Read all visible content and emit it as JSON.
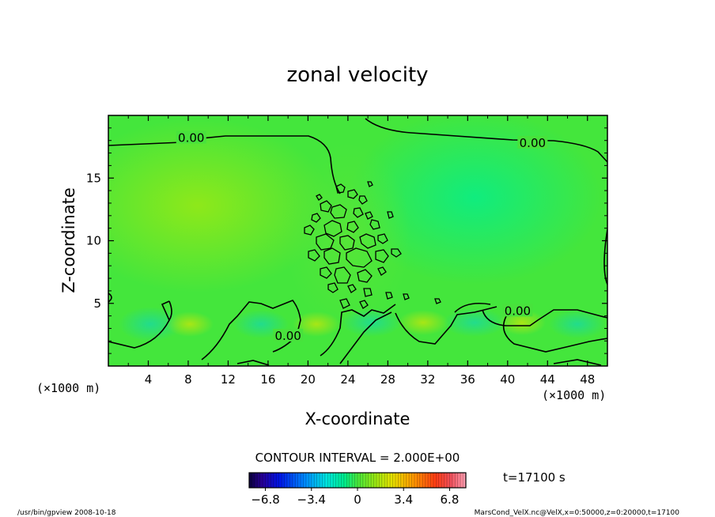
{
  "chart_data": {
    "type": "heatmap",
    "title": "zonal velocity",
    "xlabel": "X-coordinate",
    "ylabel": "Z-coordinate",
    "x_units": "(×1000 m)",
    "z_units": "(×1000 m)",
    "xlim": [
      0,
      50
    ],
    "ylim": [
      0,
      20
    ],
    "x_ticks": [
      4,
      8,
      12,
      16,
      20,
      24,
      28,
      32,
      36,
      40,
      44,
      48
    ],
    "y_ticks": [
      5,
      10,
      15
    ],
    "contour_interval_text": "CONTOUR INTERVAL = 2.000E+00",
    "contour_labels": [
      {
        "text": "0.00",
        "x": 8.3,
        "z": 18.2
      },
      {
        "text": "0.00",
        "x": 42.5,
        "z": 17.8
      },
      {
        "text": "0.00",
        "x": 41.0,
        "z": 4.4
      },
      {
        "text": "0.00",
        "x": 18.0,
        "z": 2.4
      }
    ],
    "colorbar": {
      "range": [
        -8.0,
        8.0
      ],
      "tick_values": [
        -6.8,
        -3.4,
        0,
        3.4,
        6.8
      ],
      "tick_labels": [
        "−6.8",
        "−3.4",
        "0",
        "3.4",
        "6.8"
      ]
    },
    "time_label": "t=17100 s",
    "footer_left": "/usr/bin/gpview   2008-10-18",
    "footer_right": "MarsCond_VelX.nc@VelX,x=0:50000,z=0:20000,t=17100"
  }
}
